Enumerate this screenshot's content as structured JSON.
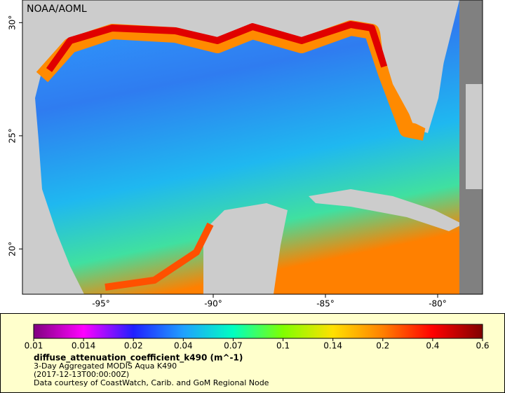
{
  "map": {
    "watermark": "NOAA/AOML",
    "xlim": [
      -98.5,
      -78
    ],
    "ylim": [
      18,
      31
    ],
    "xticks": [
      {
        "value": -95,
        "label": "-95°"
      },
      {
        "value": -90,
        "label": "-90°"
      },
      {
        "value": -85,
        "label": "-85°"
      },
      {
        "value": -80,
        "label": "-80°"
      }
    ],
    "yticks": [
      {
        "value": 20,
        "label": "20°"
      },
      {
        "value": 25,
        "label": "25°"
      },
      {
        "value": 30,
        "label": "30°"
      }
    ]
  },
  "colorbar": {
    "ticks": [
      0.01,
      0.014,
      0.02,
      0.04,
      0.07,
      0.1,
      0.14,
      0.2,
      0.4,
      0.6
    ],
    "colors": [
      "#7f007f",
      "#ff00ff",
      "#2020ff",
      "#20a0ff",
      "#00ffc0",
      "#80ff00",
      "#ffe000",
      "#ff8000",
      "#ff0000",
      "#800000"
    ],
    "title": "diffuse_attenuation_coefficient_k490 (m^-1)",
    "lines": [
      "3-Day Aggregated MODIS Aqua K490",
      "(2017-12-13T00:00:00Z)",
      "Data courtesy of CoastWatch, Carib. and GoM Regional Node"
    ]
  }
}
